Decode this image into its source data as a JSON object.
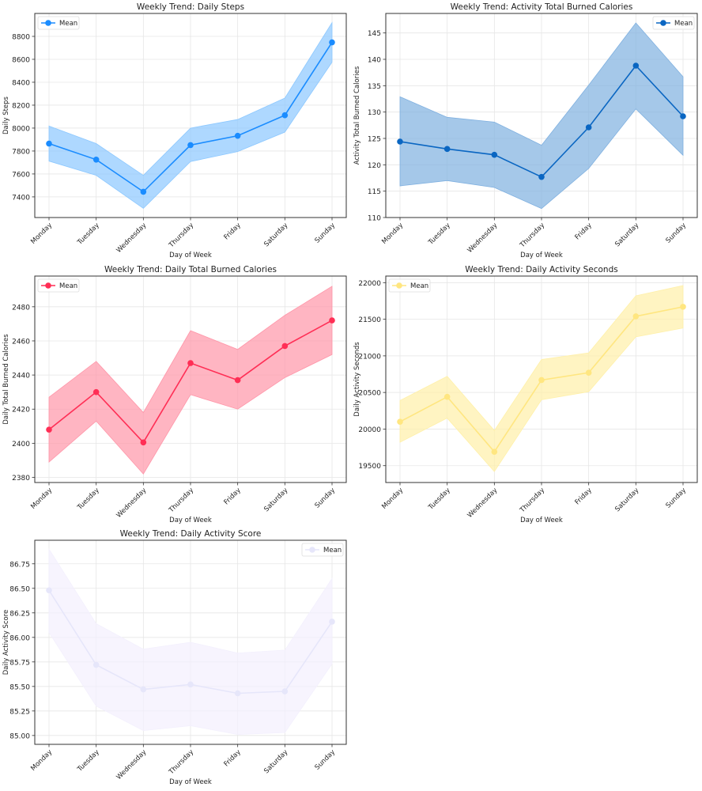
{
  "chart_data": [
    {
      "type": "line",
      "title": "Weekly Trend: Daily Steps",
      "xlabel": "Day of Week",
      "ylabel": "Daily Steps",
      "categories": [
        "Monday",
        "Tuesday",
        "Wednesday",
        "Thursday",
        "Friday",
        "Saturday",
        "Sunday"
      ],
      "ylim": [
        7220,
        9000
      ],
      "yticks": [
        7400,
        7600,
        7800,
        8000,
        8200,
        8400,
        8600,
        8800
      ],
      "ytick_labels": [
        "7400",
        "7600",
        "7800",
        "8000",
        "8200",
        "8400",
        "8600",
        "8800"
      ],
      "grid": true,
      "legend": "top-left",
      "color": "#1a8cff",
      "band_color": "#8cc8ff",
      "series": [
        {
          "name": "Mean",
          "values": [
            7865,
            7725,
            7445,
            7852,
            7933,
            8112,
            8748
          ]
        }
      ],
      "band_lower": [
        7712,
        7588,
        7300,
        7708,
        7795,
        7965,
        8575
      ],
      "band_upper": [
        8018,
        7865,
        7588,
        8000,
        8075,
        8262,
        8920
      ]
    },
    {
      "type": "line",
      "title": "Weekly Trend: Activity Total Burned Calories",
      "xlabel": "Day of Week",
      "ylabel": "Activity Total Burned Calories",
      "categories": [
        "Monday",
        "Tuesday",
        "Wednesday",
        "Thursday",
        "Friday",
        "Saturday",
        "Sunday"
      ],
      "ylim": [
        110,
        148.7
      ],
      "yticks": [
        110,
        115,
        120,
        125,
        130,
        135,
        140,
        145
      ],
      "ytick_labels": [
        "110",
        "115",
        "120",
        "125",
        "130",
        "135",
        "140",
        "145"
      ],
      "grid": true,
      "legend": "top-right",
      "color": "#0a66c2",
      "band_color": "#7fb0e0",
      "series": [
        {
          "name": "Mean",
          "values": [
            124.4,
            123.0,
            121.9,
            117.7,
            127.1,
            138.8,
            129.2
          ]
        }
      ],
      "band_lower": [
        116.0,
        117.0,
        115.7,
        111.7,
        119.3,
        130.6,
        121.8
      ],
      "band_upper": [
        132.9,
        129.0,
        128.1,
        123.7,
        135.1,
        146.9,
        136.7
      ]
    },
    {
      "type": "line",
      "title": "Weekly Trend: Daily Total Burned Calories",
      "xlabel": "Day of Week",
      "ylabel": "Daily Total Burned Calories",
      "categories": [
        "Monday",
        "Tuesday",
        "Wednesday",
        "Thursday",
        "Friday",
        "Saturday",
        "Sunday"
      ],
      "ylim": [
        2377,
        2498
      ],
      "yticks": [
        2380,
        2400,
        2420,
        2440,
        2460,
        2480
      ],
      "ytick_labels": [
        "2380",
        "2400",
        "2420",
        "2440",
        "2460",
        "2480"
      ],
      "grid": true,
      "legend": "top-left",
      "color": "#ff2e55",
      "band_color": "#ff95a8",
      "series": [
        {
          "name": "Mean",
          "values": [
            2408,
            2430,
            2400.5,
            2447,
            2437,
            2457,
            2472
          ]
        }
      ],
      "band_lower": [
        2389,
        2413,
        2382,
        2428.5,
        2420,
        2438.5,
        2452
      ],
      "band_upper": [
        2427,
        2448,
        2418,
        2466,
        2455,
        2475,
        2492
      ]
    },
    {
      "type": "line",
      "title": "Weekly Trend: Daily Activity Seconds",
      "xlabel": "Day of Week",
      "ylabel": "Daily Activity Seconds",
      "categories": [
        "Monday",
        "Tuesday",
        "Wednesday",
        "Thursday",
        "Friday",
        "Saturday",
        "Sunday"
      ],
      "ylim": [
        19270,
        22090
      ],
      "yticks": [
        19500,
        20000,
        20500,
        21000,
        21500,
        22000
      ],
      "ytick_labels": [
        "19500",
        "20000",
        "20500",
        "21000",
        "21500",
        "22000"
      ],
      "grid": true,
      "legend": "top-left",
      "color": "#ffe680",
      "band_color": "#fff0a8",
      "series": [
        {
          "name": "Mean",
          "values": [
            20100,
            20440,
            19690,
            20670,
            20770,
            21540,
            21670
          ]
        }
      ],
      "band_lower": [
        19820,
        20150,
        19420,
        20400,
        20510,
        21260,
        21380
      ],
      "band_upper": [
        20390,
        20720,
        19980,
        20950,
        21040,
        21820,
        21960
      ]
    },
    {
      "type": "line",
      "title": "Weekly Trend: Daily Activity Score",
      "xlabel": "Day of Week",
      "ylabel": "Daily Activity Score",
      "categories": [
        "Monday",
        "Tuesday",
        "Wednesday",
        "Thursday",
        "Friday",
        "Saturday",
        "Sunday"
      ],
      "ylim": [
        84.91,
        86.99
      ],
      "yticks": [
        85.0,
        85.25,
        85.5,
        85.75,
        86.0,
        86.25,
        86.5,
        86.75
      ],
      "ytick_labels": [
        "85.00",
        "85.25",
        "85.50",
        "85.75",
        "86.00",
        "86.25",
        "86.50",
        "86.75"
      ],
      "grid": true,
      "legend": "top-right",
      "color": "#e6e6fa",
      "band_color": "#f3f0fd",
      "series": [
        {
          "name": "Mean",
          "values": [
            86.48,
            85.72,
            85.47,
            85.52,
            85.43,
            85.45,
            86.16
          ]
        }
      ],
      "band_lower": [
        86.05,
        85.3,
        85.05,
        85.1,
        85.01,
        85.03,
        85.73
      ],
      "band_upper": [
        86.9,
        86.14,
        85.88,
        85.95,
        85.84,
        85.87,
        86.6
      ]
    }
  ]
}
